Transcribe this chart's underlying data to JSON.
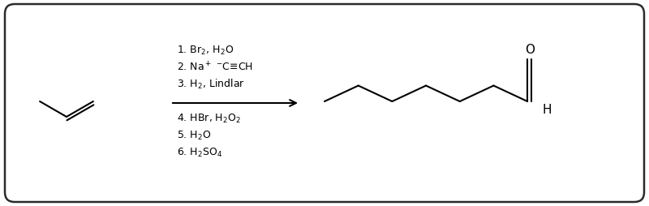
{
  "background_color": "#ffffff",
  "border_color": "#2b2b2b",
  "fig_width": 8.0,
  "fig_height": 2.54,
  "dpi": 100,
  "reagents": [
    "1. Br$_2$, H$_2$O",
    "2. Na$^+$ $^{-}$C≡CH",
    "3. H$_2$, Lindlar",
    "4. HBr, H$_2$O$_2$",
    "5. H$_2$O",
    "6. H$_2$SO$_4$"
  ],
  "font_size": 9.0,
  "line_color": "#000000",
  "line_width": 1.5
}
